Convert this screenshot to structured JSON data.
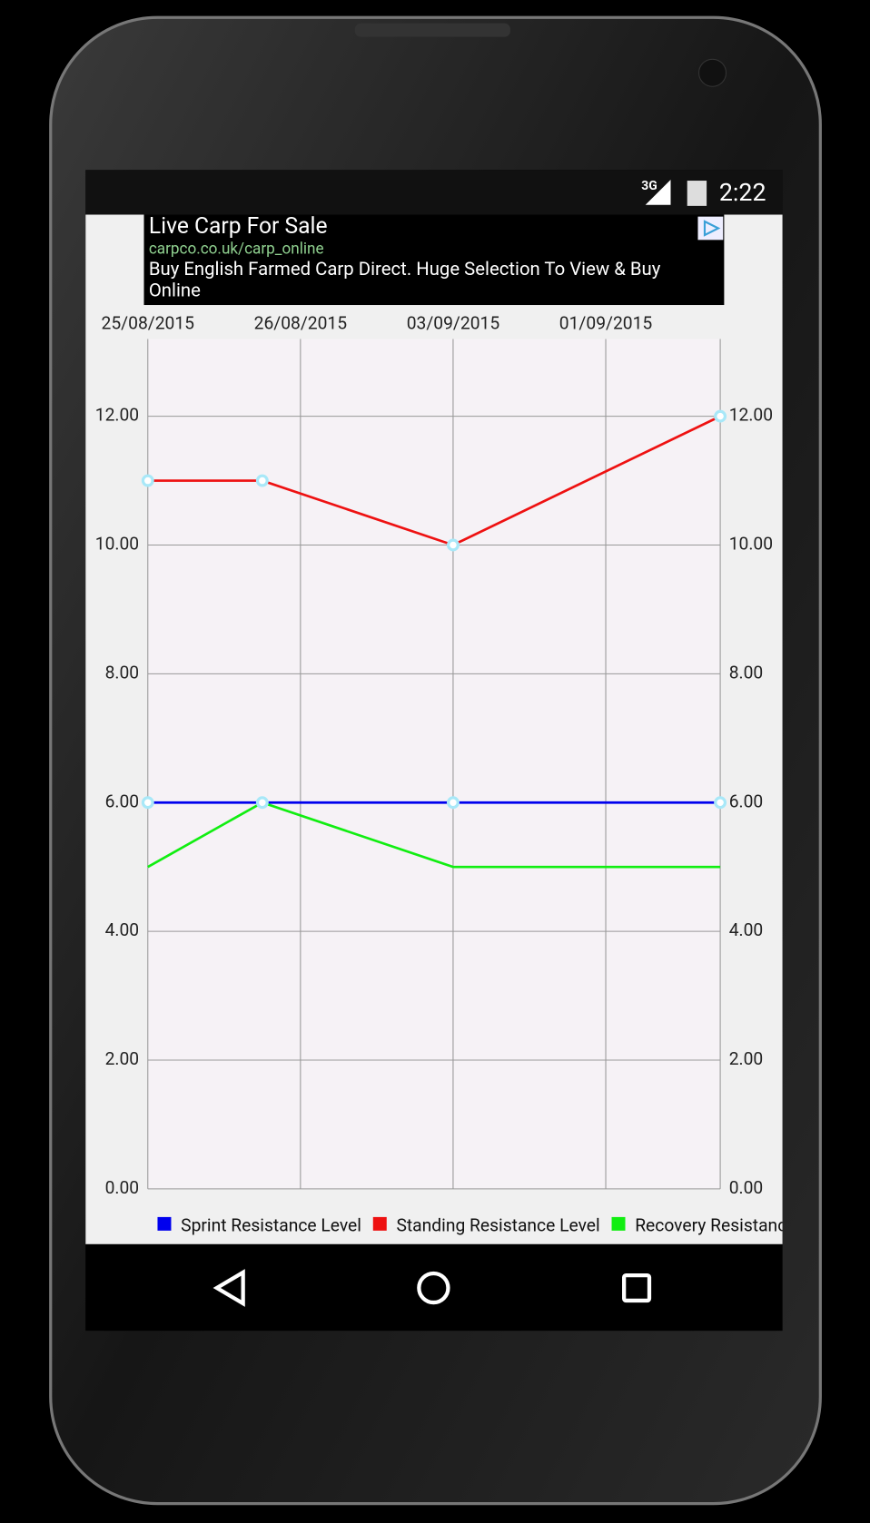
{
  "status_bar": {
    "network": "3G",
    "time": "2:22"
  },
  "ad": {
    "title": "Live Carp For Sale",
    "url": "carpco.co.uk/carp_online",
    "text_lines": [
      "Buy English Farmed Carp Direct. Huge Selection To View & Buy",
      "Online"
    ]
  },
  "chart_data": {
    "type": "line",
    "x": [
      0,
      0.75,
      2,
      3.75
    ],
    "xlim": [
      0,
      3.75
    ],
    "xticks": [
      {
        "value": 0,
        "label": "25/08/2015"
      },
      {
        "value": 1,
        "label": "26/08/2015"
      },
      {
        "value": 2,
        "label": "03/09/2015"
      },
      {
        "value": 3,
        "label": "01/09/2015"
      }
    ],
    "ylim": [
      0,
      13.2
    ],
    "yticks": [
      {
        "value": 0,
        "label": "0.00"
      },
      {
        "value": 2,
        "label": "2.00"
      },
      {
        "value": 4,
        "label": "4.00"
      },
      {
        "value": 6,
        "label": "6.00"
      },
      {
        "value": 8,
        "label": "8.00"
      },
      {
        "value": 10,
        "label": "10.00"
      },
      {
        "value": 12,
        "label": "12.00"
      }
    ],
    "grid": true,
    "marker_color": "#a8e8f8",
    "series": [
      {
        "name": "Sprint Resistance Level",
        "color": "#0000ee",
        "values": [
          6,
          6,
          6,
          6
        ],
        "markers": true
      },
      {
        "name": "Standing Resistance Level",
        "color": "#ee1111",
        "values": [
          11,
          11,
          10,
          12
        ],
        "markers": true
      },
      {
        "name": "Recovery Resistance Level",
        "color": "#11ee11",
        "values": [
          5,
          6,
          5,
          5
        ],
        "markers": false
      }
    ]
  }
}
